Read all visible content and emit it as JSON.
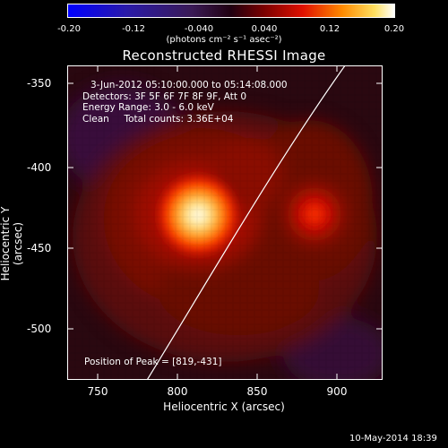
{
  "colorbar": {
    "ticks": [
      "-0.20",
      "-0.12",
      "-0.040",
      "0.040",
      "0.12",
      "0.20"
    ],
    "unit": "(photons cm⁻² s⁻¹ asec⁻²)"
  },
  "title": "Reconstructed RHESSI Image",
  "info": {
    "line1": "3-Jun-2012 05:10:00.000 to 05:14:08.000",
    "line2": "Detectors: 3F 5F 6F 7F 8F 9F, Att 0",
    "line3": "Energy Range: 3.0 - 6.0 keV",
    "line4": "Clean     Total counts: 3.36E+04",
    "peak": "Position of Peak = [819,-431]"
  },
  "axes": {
    "xlabel": "Heliocentric X (arcsec)",
    "ylabel": "Heliocentric Y (arcsec)",
    "xticks": [
      "750",
      "800",
      "850",
      "900"
    ],
    "yticks": [
      "-350",
      "-400",
      "-450",
      "-500"
    ]
  },
  "footer": "10-May-2014 18:39"
}
